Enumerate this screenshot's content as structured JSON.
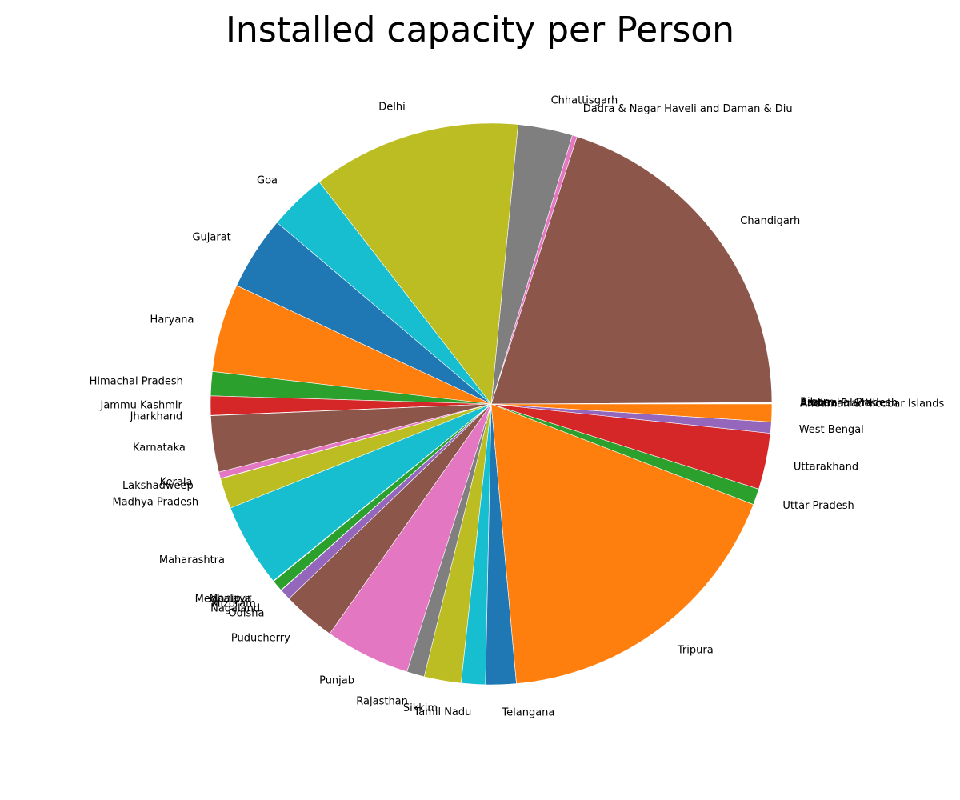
{
  "chart_data": {
    "type": "pie",
    "title": "Installed capacity per Person",
    "start_angle_deg": 0,
    "direction": "counterclockwise",
    "edge_color": "#ffffff",
    "slices": [
      {
        "label": "Andaman & Nicobar Islands",
        "value": 0.02,
        "color": "#1f77b4"
      },
      {
        "label": "Andhra Pradesh",
        "value": 0.02,
        "color": "#ff7f0e"
      },
      {
        "label": "Arunachal Pradesh",
        "value": 0.02,
        "color": "#2ca02c"
      },
      {
        "label": "Assam",
        "value": 0.02,
        "color": "#d62728"
      },
      {
        "label": "Bihar",
        "value": 0.02,
        "color": "#9467bd"
      },
      {
        "label": "Chandigarh",
        "value": 21.6,
        "color": "#8c564b"
      },
      {
        "label": "Dadra & Nagar Haveli and Daman & Diu",
        "value": 0.3,
        "color": "#e377c2"
      },
      {
        "label": "Chhattisgarh",
        "value": 3.4,
        "color": "#7f7f7f"
      },
      {
        "label": "Delhi",
        "value": 13.0,
        "color": "#bcbd22"
      },
      {
        "label": "Goa",
        "value": 3.6,
        "color": "#17becf"
      },
      {
        "label": "Gujarat",
        "value": 4.6,
        "color": "#1f77b4"
      },
      {
        "label": "Haryana",
        "value": 5.5,
        "color": "#ff7f0e"
      },
      {
        "label": "Himachal Pradesh",
        "value": 1.5,
        "color": "#2ca02c"
      },
      {
        "label": "Jammu Kashmir",
        "value": 1.2,
        "color": "#d62728"
      },
      {
        "label": "Jharkhand",
        "value": 0.02,
        "color": "#9467bd"
      },
      {
        "label": "Karnataka",
        "value": 3.5,
        "color": "#8c564b"
      },
      {
        "label": "Kerala",
        "value": 0.4,
        "color": "#e377c2"
      },
      {
        "label": "Lakshadweep",
        "value": 0.02,
        "color": "#7f7f7f"
      },
      {
        "label": "Madhya Pradesh",
        "value": 1.9,
        "color": "#bcbd22"
      },
      {
        "label": "Maharashtra",
        "value": 5.2,
        "color": "#17becf"
      },
      {
        "label": "Manipur",
        "value": 0.02,
        "color": "#1f77b4"
      },
      {
        "label": "Meghalaya",
        "value": 0.02,
        "color": "#ff7f0e"
      },
      {
        "label": "Mizoram",
        "value": 0.7,
        "color": "#2ca02c"
      },
      {
        "label": "Nagaland",
        "value": 0.02,
        "color": "#d62728"
      },
      {
        "label": "Odisha",
        "value": 0.7,
        "color": "#9467bd"
      },
      {
        "label": "Puducherry",
        "value": 3.3,
        "color": "#8c564b"
      },
      {
        "label": "Punjab",
        "value": 5.3,
        "color": "#e377c2"
      },
      {
        "label": "Rajasthan",
        "value": 1.1,
        "color": "#7f7f7f"
      },
      {
        "label": "Sikkim",
        "value": 2.3,
        "color": "#bcbd22"
      },
      {
        "label": "Tamil Nadu",
        "value": 1.5,
        "color": "#17becf"
      },
      {
        "label": "Telangana",
        "value": 1.9,
        "color": "#1f77b4"
      },
      {
        "label": "Tripura",
        "value": 19.2,
        "color": "#ff7f0e"
      },
      {
        "label": "Uttar Pradesh",
        "value": 1.0,
        "color": "#2ca02c"
      },
      {
        "label": "Uttarakhand",
        "value": 3.5,
        "color": "#d62728"
      },
      {
        "label": "West Bengal",
        "value": 0.7,
        "color": "#9467bd"
      },
      {
        "label": "",
        "value": 1.1,
        "color": "#ff7f0e"
      }
    ]
  }
}
